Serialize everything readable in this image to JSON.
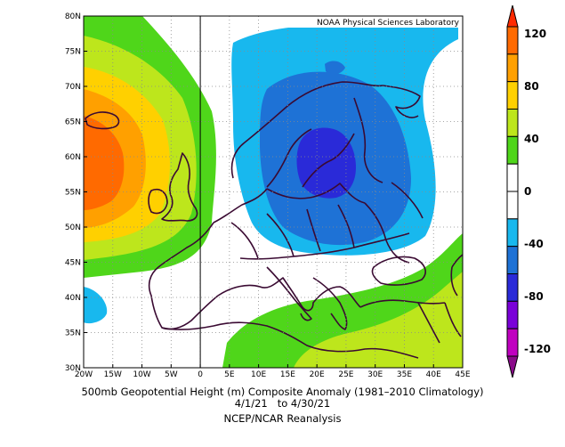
{
  "map": {
    "credit": "NOAA Physical Sciences Laboratory",
    "lat_labels": [
      "80N",
      "75N",
      "70N",
      "65N",
      "60N",
      "55N",
      "50N",
      "45N",
      "40N",
      "35N",
      "30N"
    ],
    "lon_labels": [
      "20W",
      "15W",
      "10W",
      "5W",
      "0",
      "5E",
      "10E",
      "15E",
      "20E",
      "25E",
      "30E",
      "35E",
      "40E",
      "45E"
    ],
    "extent": {
      "lon": [
        -20,
        45
      ],
      "lat": [
        30,
        80
      ]
    }
  },
  "colorbar": {
    "labels": [
      "120",
      "80",
      "40",
      "0",
      "-40",
      "-80",
      "-120"
    ],
    "colors": [
      "#ff2a00",
      "#ff6a00",
      "#ffa000",
      "#ffd000",
      "#bde61c",
      "#4fd61a",
      "#ffffff",
      "#ffffff",
      "#18b8ee",
      "#1e72d6",
      "#2a2ad8",
      "#7a00d8",
      "#c000c0",
      "#8a0a8a"
    ]
  },
  "caption": {
    "line1": "500mb Geopotential Height (m) Composite Anomaly (1981–2010 Climatology)",
    "line2": "4/1/21   to 4/30/21",
    "line3": "NCEP/NCAR Reanalysis"
  }
}
